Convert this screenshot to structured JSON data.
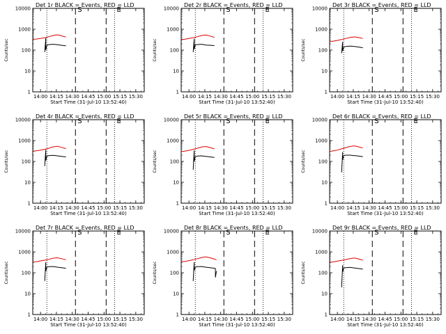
{
  "figure": {
    "xlabel": "Start Time (31-Jul-10 13:52:40)",
    "ylabel": "Counts/sec",
    "x_ticks": [
      "14:00",
      "14:15",
      "14:30",
      "14:45",
      "15:00",
      "15:15",
      "15:30"
    ],
    "y_ticks": [
      "1",
      "10",
      "100",
      "1000",
      "10000"
    ],
    "marker_S": "S",
    "marker_E": "E",
    "colors": {
      "events": "#000000",
      "lld": "#e00000",
      "frame": "#000000"
    }
  },
  "chart_data": [
    {
      "type": "line",
      "title": "Det 1r BLACK = Events, RED = LLD",
      "xlabel": "Start Time (31-Jul-10 13:52:40)",
      "ylabel": "Counts/sec",
      "y_scale": "log",
      "ylim": [
        1,
        10000
      ],
      "xlim": [
        "13:52:40",
        "15:38:00"
      ],
      "vlines": [
        {
          "x": "14:06",
          "style": "dotted"
        },
        {
          "x": "14:33",
          "style": "dashed",
          "label": "S"
        },
        {
          "x": "15:02",
          "style": "dashed"
        },
        {
          "x": "15:10",
          "style": "dotted",
          "label": "E"
        }
      ],
      "series": [
        {
          "name": "Events",
          "x": [
            "14:04",
            "14:05",
            "14:05",
            "14:06",
            "14:08",
            "14:12",
            "14:16",
            "14:20",
            "14:24"
          ],
          "values": [
            80,
            380,
            100,
            170,
            185,
            190,
            180,
            170,
            160
          ]
        },
        {
          "name": "LLD",
          "x": [
            "13:52:40",
            "13:56",
            "14:00",
            "14:04",
            "14:08",
            "14:12",
            "14:16",
            "14:20",
            "14:24"
          ],
          "values": [
            330,
            340,
            360,
            390,
            440,
            500,
            540,
            480,
            420
          ]
        }
      ]
    },
    {
      "type": "line",
      "title": "Det 2r BLACK = Events, RED = LLD",
      "xlabel": "Start Time (31-Jul-10 13:52:40)",
      "ylabel": "Counts/sec",
      "y_scale": "log",
      "ylim": [
        1,
        10000
      ],
      "xlim": [
        "13:52:40",
        "15:38:00"
      ],
      "vlines": [
        {
          "x": "14:06",
          "style": "dotted"
        },
        {
          "x": "14:33",
          "style": "dashed",
          "label": "S"
        },
        {
          "x": "15:02",
          "style": "dashed"
        },
        {
          "x": "15:10",
          "style": "dotted",
          "label": "E"
        }
      ],
      "series": [
        {
          "name": "Events",
          "x": [
            "14:04",
            "14:05",
            "14:05",
            "14:06",
            "14:08",
            "14:12",
            "14:16",
            "14:20",
            "14:24"
          ],
          "values": [
            80,
            350,
            110,
            180,
            185,
            190,
            175,
            170,
            165
          ]
        },
        {
          "name": "LLD",
          "x": [
            "13:52:40",
            "13:56",
            "14:00",
            "14:04",
            "14:08",
            "14:12",
            "14:16",
            "14:20",
            "14:24"
          ],
          "values": [
            320,
            330,
            360,
            390,
            440,
            500,
            530,
            470,
            410
          ]
        }
      ]
    },
    {
      "type": "line",
      "title": "Det 3r BLACK = Events, RED = LLD",
      "xlabel": "Start Time (31-Jul-10 13:52:40)",
      "ylabel": "Counts/sec",
      "y_scale": "log",
      "ylim": [
        1,
        10000
      ],
      "xlim": [
        "13:52:40",
        "15:38:00"
      ],
      "vlines": [
        {
          "x": "14:06",
          "style": "dotted"
        },
        {
          "x": "14:33",
          "style": "dashed",
          "label": "S"
        },
        {
          "x": "15:02",
          "style": "dashed"
        },
        {
          "x": "15:10",
          "style": "dotted",
          "label": "E"
        }
      ],
      "series": [
        {
          "name": "Events",
          "x": [
            "14:04",
            "14:05",
            "14:05",
            "14:06",
            "14:08",
            "14:12",
            "14:16",
            "14:20",
            "14:24"
          ],
          "values": [
            70,
            250,
            90,
            140,
            150,
            155,
            150,
            140,
            130
          ]
        },
        {
          "name": "LLD",
          "x": [
            "13:52:40",
            "13:56",
            "14:00",
            "14:04",
            "14:08",
            "14:12",
            "14:16",
            "14:20",
            "14:24"
          ],
          "values": [
            260,
            270,
            290,
            320,
            360,
            400,
            430,
            400,
            360
          ]
        }
      ]
    },
    {
      "type": "line",
      "title": "Det 4r BLACK = Events, RED = LLD",
      "xlabel": "Start Time (31-Jul-10 13:52:40)",
      "ylabel": "Counts/sec",
      "y_scale": "log",
      "ylim": [
        1,
        10000
      ],
      "xlim": [
        "13:52:40",
        "15:38:00"
      ],
      "vlines": [
        {
          "x": "14:06",
          "style": "dotted"
        },
        {
          "x": "14:33",
          "style": "dashed",
          "label": "S"
        },
        {
          "x": "15:02",
          "style": "dashed"
        },
        {
          "x": "15:10",
          "style": "dotted",
          "label": "E"
        }
      ],
      "series": [
        {
          "name": "Events",
          "x": [
            "14:04",
            "14:05",
            "14:05",
            "14:06",
            "14:08",
            "14:12",
            "14:16",
            "14:20",
            "14:24"
          ],
          "values": [
            60,
            360,
            110,
            180,
            190,
            195,
            185,
            175,
            165
          ]
        },
        {
          "name": "LLD",
          "x": [
            "13:52:40",
            "13:56",
            "14:00",
            "14:04",
            "14:08",
            "14:12",
            "14:16",
            "14:20",
            "14:24"
          ],
          "values": [
            310,
            320,
            350,
            380,
            430,
            500,
            530,
            470,
            410
          ]
        }
      ]
    },
    {
      "type": "line",
      "title": "Det 5r BLACK = Events, RED = LLD",
      "xlabel": "Start Time (31-Jul-10 13:52:40)",
      "ylabel": "Counts/sec",
      "y_scale": "log",
      "ylim": [
        1,
        10000
      ],
      "xlim": [
        "13:52:40",
        "15:38:00"
      ],
      "vlines": [
        {
          "x": "14:06",
          "style": "dotted"
        },
        {
          "x": "14:33",
          "style": "dashed",
          "label": "S"
        },
        {
          "x": "15:02",
          "style": "dashed"
        },
        {
          "x": "15:10",
          "style": "dotted",
          "label": "E"
        }
      ],
      "series": [
        {
          "name": "Events",
          "x": [
            "14:04",
            "14:05",
            "14:05",
            "14:06",
            "14:08",
            "14:12",
            "14:16",
            "14:20",
            "14:24"
          ],
          "values": [
            40,
            340,
            100,
            170,
            180,
            185,
            175,
            165,
            155
          ]
        },
        {
          "name": "LLD",
          "x": [
            "13:52:40",
            "13:56",
            "14:00",
            "14:04",
            "14:08",
            "14:12",
            "14:16",
            "14:20",
            "14:24"
          ],
          "values": [
            300,
            310,
            340,
            380,
            430,
            490,
            520,
            460,
            400
          ]
        }
      ]
    },
    {
      "type": "line",
      "title": "Det 6r BLACK = Events, RED = LLD",
      "xlabel": "Start Time (31-Jul-10 13:52:40)",
      "ylabel": "Counts/sec",
      "y_scale": "log",
      "ylim": [
        1,
        10000
      ],
      "xlim": [
        "13:52:40",
        "15:38:00"
      ],
      "vlines": [
        {
          "x": "14:06",
          "style": "dotted"
        },
        {
          "x": "14:33",
          "style": "dashed",
          "label": "S"
        },
        {
          "x": "15:02",
          "style": "dashed"
        },
        {
          "x": "15:10",
          "style": "dotted",
          "label": "E"
        }
      ],
      "series": [
        {
          "name": "Events",
          "x": [
            "14:04",
            "14:05",
            "14:05",
            "14:06",
            "14:08",
            "14:12",
            "14:16",
            "14:20",
            "14:24"
          ],
          "values": [
            30,
            280,
            120,
            190,
            200,
            200,
            190,
            180,
            170
          ]
        },
        {
          "name": "LLD",
          "x": [
            "13:52:40",
            "13:56",
            "14:00",
            "14:04",
            "14:08",
            "14:12",
            "14:16",
            "14:20",
            "14:24"
          ],
          "values": [
            300,
            320,
            350,
            400,
            460,
            520,
            560,
            500,
            440
          ]
        }
      ]
    },
    {
      "type": "line",
      "title": "Det 7r BLACK = Events, RED = LLD",
      "xlabel": "Start Time (31-Jul-10 13:52:40)",
      "ylabel": "Counts/sec",
      "y_scale": "log",
      "ylim": [
        1,
        10000
      ],
      "xlim": [
        "13:52:40",
        "15:38:00"
      ],
      "vlines": [
        {
          "x": "14:06",
          "style": "dotted"
        },
        {
          "x": "14:33",
          "style": "dashed",
          "label": "S"
        },
        {
          "x": "15:02",
          "style": "dashed"
        },
        {
          "x": "15:10",
          "style": "dotted",
          "label": "E"
        }
      ],
      "series": [
        {
          "name": "Events",
          "x": [
            "14:04",
            "14:05",
            "14:05",
            "14:06",
            "14:08",
            "14:12",
            "14:16",
            "14:20",
            "14:24"
          ],
          "values": [
            40,
            320,
            120,
            190,
            195,
            200,
            185,
            175,
            165
          ]
        },
        {
          "name": "LLD",
          "x": [
            "13:52:40",
            "13:56",
            "14:00",
            "14:04",
            "14:08",
            "14:12",
            "14:16",
            "14:20",
            "14:24"
          ],
          "values": [
            330,
            340,
            370,
            400,
            440,
            500,
            520,
            470,
            420
          ]
        }
      ]
    },
    {
      "type": "line",
      "title": "Det 8r BLACK = Events, RED = LLD",
      "xlabel": "Start Time (31-Jul-10 13:52:40)",
      "ylabel": "Counts/sec",
      "y_scale": "log",
      "ylim": [
        1,
        10000
      ],
      "xlim": [
        "13:52:40",
        "15:38:00"
      ],
      "vlines": [
        {
          "x": "14:06",
          "style": "dotted"
        },
        {
          "x": "14:33",
          "style": "dashed",
          "label": "S"
        },
        {
          "x": "15:02",
          "style": "dashed"
        },
        {
          "x": "15:10",
          "style": "dotted",
          "label": "E"
        }
      ],
      "series": [
        {
          "name": "Events",
          "x": [
            "14:04",
            "14:05",
            "14:05",
            "14:06",
            "14:08",
            "14:12",
            "14:16",
            "14:20",
            "14:24",
            "14:25",
            "14:25",
            "14:26"
          ],
          "values": [
            40,
            320,
            130,
            190,
            195,
            200,
            185,
            175,
            165,
            160,
            60,
            120
          ]
        },
        {
          "name": "LLD",
          "x": [
            "13:52:40",
            "13:56",
            "14:00",
            "14:04",
            "14:08",
            "14:12",
            "14:16",
            "14:20",
            "14:24",
            "14:26"
          ],
          "values": [
            340,
            350,
            380,
            420,
            470,
            540,
            580,
            520,
            450,
            420
          ]
        }
      ]
    },
    {
      "type": "line",
      "title": "Det 9r BLACK = Events, RED = LLD",
      "xlabel": "Start Time (31-Jul-10 13:52:40)",
      "ylabel": "Counts/sec",
      "y_scale": "log",
      "ylim": [
        1,
        10000
      ],
      "xlim": [
        "13:52:40",
        "15:38:00"
      ],
      "vlines": [
        {
          "x": "14:06",
          "style": "dotted"
        },
        {
          "x": "14:33",
          "style": "dashed",
          "label": "S"
        },
        {
          "x": "15:02",
          "style": "dashed"
        },
        {
          "x": "15:10",
          "style": "dotted",
          "label": "E"
        }
      ],
      "series": [
        {
          "name": "Events",
          "x": [
            "14:04",
            "14:05",
            "14:05",
            "14:06",
            "14:08",
            "14:12",
            "14:16",
            "14:20",
            "14:24"
          ],
          "values": [
            20,
            230,
            110,
            170,
            175,
            180,
            170,
            160,
            150
          ]
        },
        {
          "name": "LLD",
          "x": [
            "13:52:40",
            "13:56",
            "14:00",
            "14:04",
            "14:08",
            "14:12",
            "14:16",
            "14:20",
            "14:24"
          ],
          "values": [
            320,
            330,
            360,
            390,
            430,
            480,
            510,
            460,
            400
          ]
        }
      ]
    }
  ]
}
